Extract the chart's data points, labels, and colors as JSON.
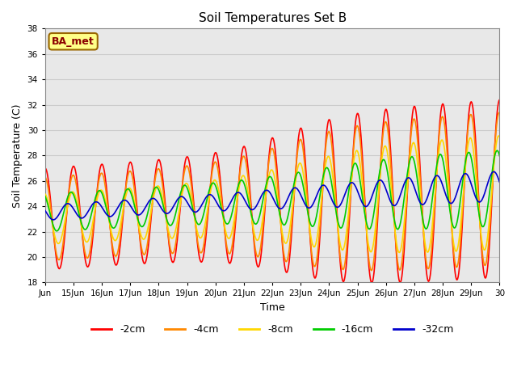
{
  "title": "Soil Temperatures Set B",
  "xlabel": "Time",
  "ylabel": "Soil Temperature (C)",
  "ylim": [
    18,
    38
  ],
  "yticks": [
    18,
    20,
    22,
    24,
    26,
    28,
    30,
    32,
    34,
    36,
    38
  ],
  "x_tick_labels": [
    "Jun",
    "15Jun",
    "16Jun",
    "17Jun",
    "18Jun",
    "19Jun",
    "20Jun",
    "21Jun",
    "22Jun",
    "23Jun",
    "24Jun",
    "25Jun",
    "26Jun",
    "27Jun",
    "28Jun",
    "29Jun",
    "30"
  ],
  "annotation_text": "BA_met",
  "annotation_color": "#8B0000",
  "annotation_bg": "#FFFF88",
  "annotation_border": "#996600",
  "bg_color": "#E8E8E8",
  "series": {
    "-2cm": {
      "color": "#FF0000",
      "lw": 1.2
    },
    "-4cm": {
      "color": "#FF8800",
      "lw": 1.2
    },
    "-8cm": {
      "color": "#FFD700",
      "lw": 1.2
    },
    "-16cm": {
      "color": "#00CC00",
      "lw": 1.2
    },
    "-32cm": {
      "color": "#0000CC",
      "lw": 1.2
    }
  }
}
